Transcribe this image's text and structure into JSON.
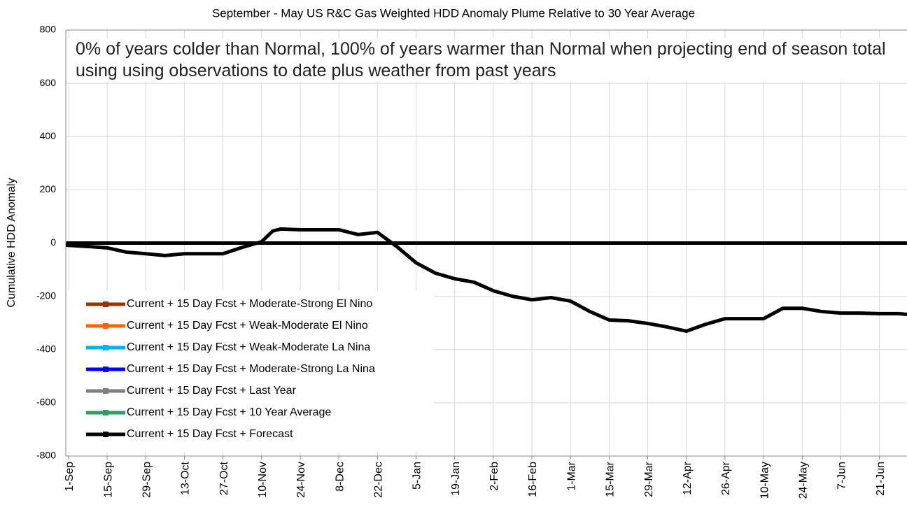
{
  "chart_data": {
    "type": "line",
    "title": "September - May US R&C Gas Weighted HDD Anomaly Plume Relative to 30 Year Average",
    "annotation": "0% of years colder than Normal, 100% of years warmer than Normal when projecting end of season total using using observations to date plus weather from past years",
    "y_label": "Cumulative HDD Anomaly",
    "ylim": [
      -800,
      800
    ],
    "yticks": [
      -800,
      -600,
      -400,
      -200,
      0,
      200,
      400,
      600,
      800
    ],
    "xlim": [
      -1,
      304
    ],
    "xticks": [
      {
        "value": 0,
        "label": "1-Sep"
      },
      {
        "value": 14,
        "label": "15-Sep"
      },
      {
        "value": 28,
        "label": "29-Sep"
      },
      {
        "value": 42,
        "label": "13-Oct"
      },
      {
        "value": 56,
        "label": "27-Oct"
      },
      {
        "value": 70,
        "label": "10-Nov"
      },
      {
        "value": 84,
        "label": "24-Nov"
      },
      {
        "value": 98,
        "label": "8-Dec"
      },
      {
        "value": 112,
        "label": "22-Dec"
      },
      {
        "value": 126,
        "label": "5-Jan"
      },
      {
        "value": 140,
        "label": "19-Jan"
      },
      {
        "value": 154,
        "label": "2-Feb"
      },
      {
        "value": 168,
        "label": "16-Feb"
      },
      {
        "value": 182,
        "label": "1-Mar"
      },
      {
        "value": 196,
        "label": "15-Mar"
      },
      {
        "value": 210,
        "label": "29-Mar"
      },
      {
        "value": 224,
        "label": "12-Apr"
      },
      {
        "value": 238,
        "label": "26-Apr"
      },
      {
        "value": 252,
        "label": "10-May"
      },
      {
        "value": 266,
        "label": "24-May"
      },
      {
        "value": 280,
        "label": "7-Jun"
      },
      {
        "value": 294,
        "label": "21-Jun"
      }
    ],
    "grid": true,
    "legend": "lower left",
    "series": [
      {
        "name": "Current + 15 Day Fcst + Moderate-Strong El Nino",
        "color": "#993300"
      },
      {
        "name": "Current + 15 Day Fcst + Weak-Moderate El Nino",
        "color": "#ff6600"
      },
      {
        "name": "Current + 15 Day Fcst + Weak-Moderate La Nina",
        "color": "#00b0f0"
      },
      {
        "name": "Current + 15 Day Fcst + Moderate-Strong La Nina",
        "color": "#0000ff"
      },
      {
        "name": "Current + 15 Day Fcst + Last Year",
        "color": "#808080"
      },
      {
        "name": "Current + 15 Day Fcst + 10 Year Average",
        "color": "#339966"
      },
      {
        "name": "Current + 15 Day Fcst + Forecast",
        "color": "#000000",
        "x": [
          -1,
          7,
          14,
          21,
          28,
          35,
          42,
          49,
          56,
          63,
          70,
          74,
          77,
          84,
          91,
          98,
          105,
          112,
          119,
          126,
          133,
          140,
          147,
          154,
          161,
          168,
          175,
          182,
          189,
          196,
          203,
          210,
          217,
          224,
          231,
          238,
          245,
          252,
          259,
          266,
          273,
          280,
          287,
          294,
          301,
          304
        ],
        "values": [
          -8,
          -13,
          -18,
          -34,
          -40,
          -47,
          -40,
          -40,
          -40,
          -16,
          5,
          45,
          53,
          50,
          50,
          50,
          32,
          40,
          -13,
          -74,
          -113,
          -134,
          -147,
          -179,
          -200,
          -213,
          -205,
          -218,
          -257,
          -289,
          -292,
          -302,
          -315,
          -331,
          -305,
          -284,
          -284,
          -284,
          -245,
          -245,
          -257,
          -263,
          -263,
          -265,
          -265,
          -268
        ]
      }
    ]
  }
}
